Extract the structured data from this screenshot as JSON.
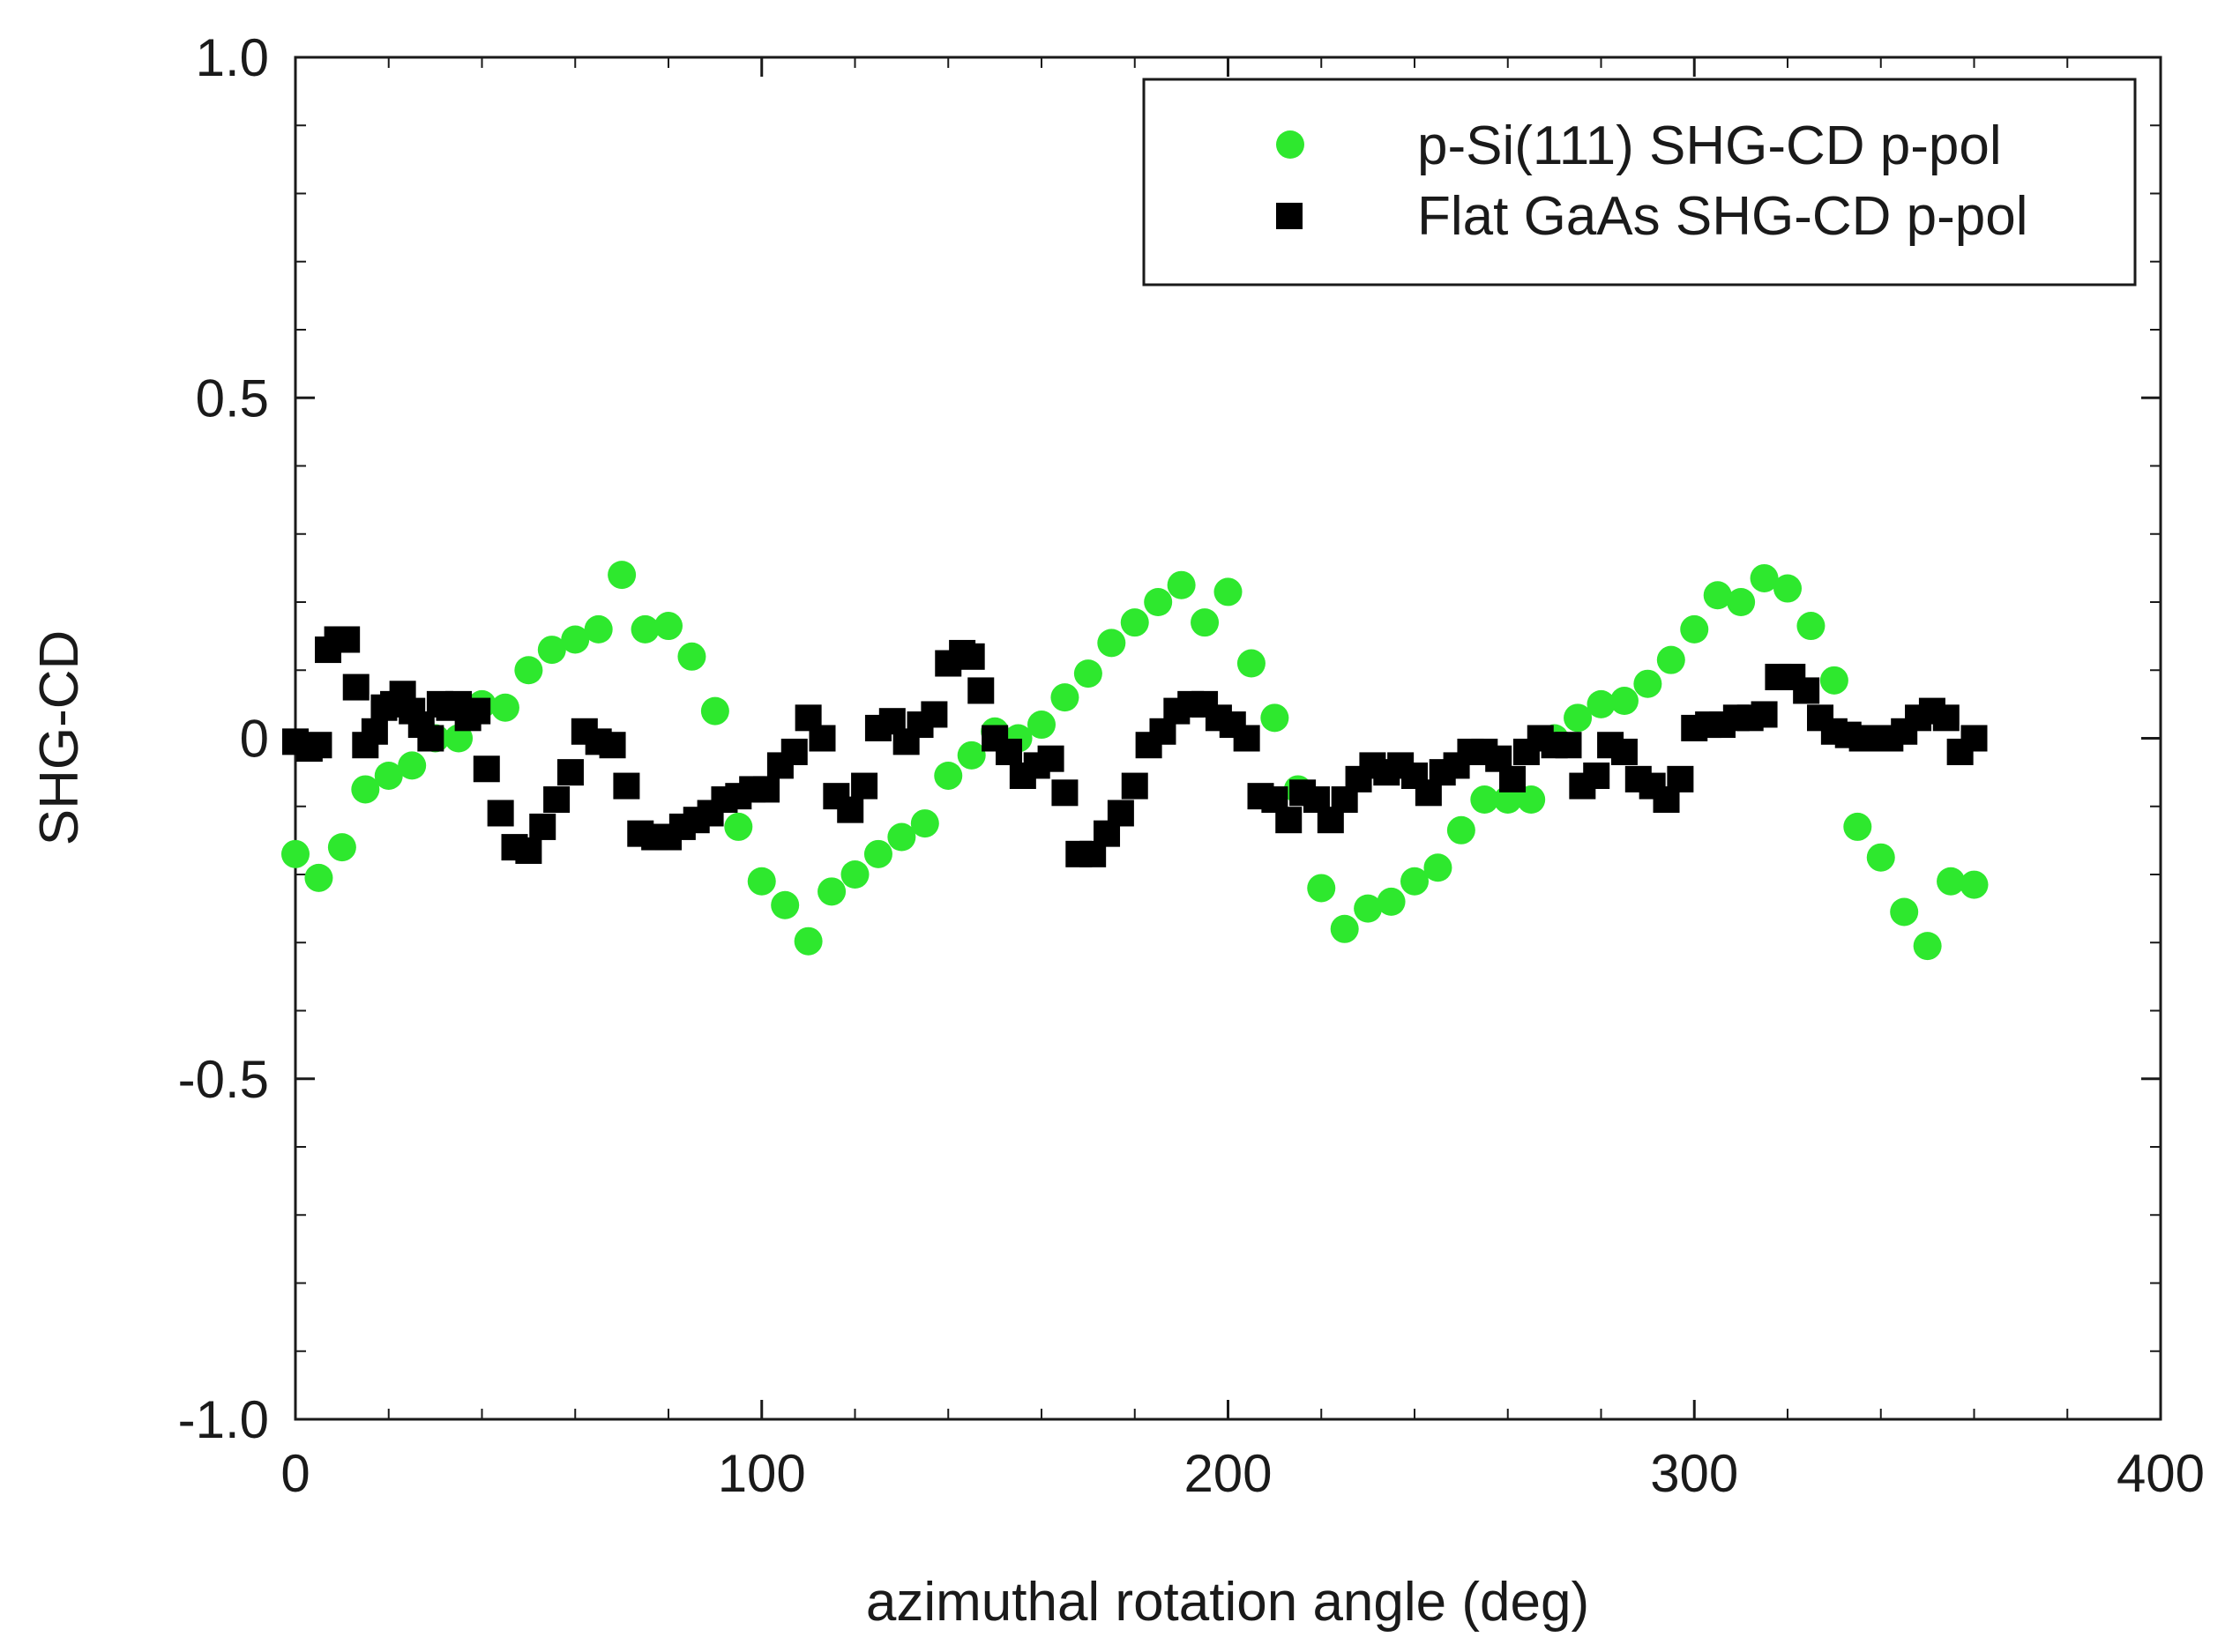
{
  "chart_data": {
    "type": "scatter",
    "title": "",
    "xlabel": "azimuthal rotation angle (deg)",
    "ylabel": "SHG-CD",
    "xlim": [
      0,
      400
    ],
    "ylim": [
      -1.0,
      1.0
    ],
    "xticks": [
      0,
      100,
      200,
      300,
      400
    ],
    "xtick_labels": [
      "0",
      "100",
      "200",
      "300",
      "400"
    ],
    "yticks": [
      1.0,
      0.5,
      0,
      -0.5,
      -1.0
    ],
    "ytick_labels": [
      "1.0",
      "0.5",
      "0",
      "-0.5",
      "-1.0"
    ],
    "grid": false,
    "legend_position": "top-right",
    "series": [
      {
        "name": "p-Si(111) SHG-CD p-pol",
        "marker": "circle",
        "color": "#2ee82e",
        "x": [
          0,
          5,
          10,
          15,
          20,
          25,
          30,
          35,
          40,
          45,
          50,
          55,
          60,
          65,
          70,
          75,
          80,
          85,
          90,
          95,
          100,
          105,
          110,
          115,
          120,
          125,
          130,
          135,
          140,
          145,
          150,
          155,
          160,
          165,
          170,
          175,
          180,
          185,
          190,
          195,
          200,
          205,
          210,
          215,
          220,
          225,
          230,
          235,
          240,
          245,
          250,
          255,
          260,
          265,
          270,
          275,
          280,
          285,
          290,
          295,
          300,
          305,
          310,
          315,
          320,
          325,
          330,
          335,
          340,
          345,
          350,
          355,
          360
        ],
        "y": [
          -0.17,
          -0.205,
          -0.16,
          -0.075,
          -0.055,
          -0.04,
          0.0,
          0.0,
          0.05,
          0.045,
          0.1,
          0.13,
          0.145,
          0.16,
          0.24,
          0.16,
          0.165,
          0.12,
          0.04,
          -0.13,
          -0.21,
          -0.245,
          -0.298,
          -0.225,
          -0.2,
          -0.17,
          -0.145,
          -0.125,
          -0.055,
          -0.025,
          0.01,
          0.0,
          0.02,
          0.06,
          0.095,
          0.14,
          0.17,
          0.2,
          0.225,
          0.17,
          0.215,
          0.11,
          0.03,
          -0.075,
          -0.22,
          -0.28,
          -0.25,
          -0.24,
          -0.21,
          -0.19,
          -0.135,
          -0.09,
          -0.09,
          -0.09,
          0.0,
          0.03,
          0.05,
          0.055,
          0.08,
          0.115,
          0.16,
          0.21,
          0.2,
          0.235,
          0.22,
          0.165,
          0.085,
          -0.13,
          -0.175,
          -0.255,
          -0.305,
          -0.21,
          -0.215
        ]
      },
      {
        "name": "Flat GaAs SHG-CD p-pol",
        "marker": "square",
        "color": "#000000",
        "x": [
          0,
          3,
          5,
          7,
          9,
          11,
          13,
          15,
          17,
          19,
          21,
          23,
          25,
          27,
          29,
          31,
          33,
          35,
          37,
          39,
          41,
          44,
          47,
          50,
          53,
          56,
          59,
          62,
          65,
          68,
          71,
          74,
          77,
          80,
          83,
          86,
          89,
          92,
          95,
          98,
          101,
          104,
          107,
          110,
          113,
          116,
          119,
          122,
          125,
          128,
          131,
          134,
          137,
          140,
          143,
          145,
          147,
          150,
          153,
          156,
          159,
          162,
          165,
          168,
          171,
          174,
          177,
          180,
          183,
          186,
          189,
          192,
          195,
          198,
          201,
          204,
          207,
          210,
          213,
          216,
          219,
          222,
          225,
          228,
          231,
          234,
          237,
          240,
          243,
          246,
          249,
          252,
          255,
          258,
          261,
          264,
          267,
          270,
          273,
          276,
          279,
          282,
          285,
          288,
          291,
          294,
          297,
          300,
          303,
          306,
          309,
          312,
          315,
          318,
          321,
          324,
          327,
          330,
          333,
          336,
          339,
          342,
          345,
          348,
          351,
          354,
          357,
          360
        ],
        "y": [
          -0.005,
          -0.015,
          -0.01,
          0.13,
          0.145,
          0.145,
          0.075,
          -0.01,
          0.01,
          0.045,
          0.05,
          0.065,
          0.04,
          0.02,
          0.0,
          0.05,
          0.045,
          0.05,
          0.03,
          0.04,
          -0.045,
          -0.11,
          -0.16,
          -0.165,
          -0.13,
          -0.09,
          -0.05,
          0.01,
          -0.005,
          -0.01,
          -0.07,
          -0.14,
          -0.145,
          -0.145,
          -0.13,
          -0.12,
          -0.11,
          -0.09,
          -0.085,
          -0.075,
          -0.075,
          -0.04,
          -0.02,
          0.03,
          0.0,
          -0.085,
          -0.105,
          -0.07,
          0.015,
          0.025,
          -0.005,
          0.02,
          0.035,
          0.11,
          0.125,
          0.12,
          0.07,
          0.0,
          -0.02,
          -0.055,
          -0.04,
          -0.03,
          -0.08,
          -0.17,
          -0.17,
          -0.14,
          -0.11,
          -0.07,
          -0.01,
          0.01,
          0.04,
          0.05,
          0.05,
          0.03,
          0.02,
          0.0,
          -0.085,
          -0.09,
          -0.12,
          -0.08,
          -0.09,
          -0.12,
          -0.09,
          -0.06,
          -0.04,
          -0.05,
          -0.04,
          -0.055,
          -0.08,
          -0.05,
          -0.04,
          -0.02,
          -0.02,
          -0.03,
          -0.06,
          -0.02,
          0.0,
          -0.01,
          -0.01,
          -0.07,
          -0.055,
          -0.01,
          -0.02,
          -0.06,
          -0.07,
          -0.09,
          -0.06,
          0.015,
          0.02,
          0.02,
          0.03,
          0.03,
          0.035,
          0.09,
          0.09,
          0.07,
          0.03,
          0.01,
          0.005,
          0.0,
          0.0,
          0.0,
          0.01,
          0.03,
          0.04,
          0.03,
          -0.02,
          0.0
        ]
      }
    ]
  }
}
